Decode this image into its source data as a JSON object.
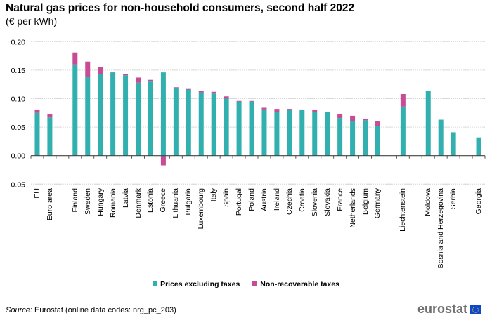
{
  "chart_data": {
    "type": "bar",
    "stacked": true,
    "title": "Natural gas prices for non-household consumers, second half 2022",
    "subtitle": "(€ per kWh)",
    "categories": [
      "EU",
      "Euro area",
      "",
      "Finland",
      "Sweden",
      "Hungary",
      "Romania",
      "Latvia",
      "Denmark",
      "Estonia",
      "Greece",
      "Lithuania",
      "Bulgaria",
      "Luxembourg",
      "Italy",
      "Spain",
      "Portugal",
      "Poland",
      "Austria",
      "Ireland",
      "Czechia",
      "Croatia",
      "Slovenia",
      "Slovakia",
      "France",
      "Netherlands",
      "Belgium",
      "Germany",
      "",
      "Liechtenstein",
      "",
      "Moldova",
      "Bosnia and Herzegovina",
      "Serbia",
      "",
      "Georgia"
    ],
    "series": [
      {
        "name": "Prices excluding taxes",
        "color": "#32afaf",
        "values": [
          0.075,
          0.067,
          null,
          0.16,
          0.138,
          0.143,
          0.146,
          0.141,
          0.128,
          0.13,
          0.146,
          0.118,
          0.116,
          0.111,
          0.109,
          0.1,
          0.095,
          0.095,
          0.081,
          0.076,
          0.08,
          0.08,
          0.077,
          0.076,
          0.066,
          0.061,
          0.062,
          0.052,
          null,
          0.086,
          null,
          0.114,
          0.063,
          0.041,
          null,
          0.032
        ]
      },
      {
        "name": "Non-recoverable taxes",
        "color": "#c84b96",
        "values": [
          0.006,
          0.006,
          null,
          0.021,
          0.027,
          0.013,
          0.001,
          0.002,
          0.009,
          0.003,
          -0.017,
          0.002,
          0.001,
          0.002,
          0.003,
          0.004,
          0.001,
          0.001,
          0.003,
          0.006,
          0.002,
          0.001,
          0.003,
          0.001,
          0.007,
          0.009,
          0.002,
          0.009,
          null,
          0.022,
          null,
          0.0,
          0.0,
          0.0,
          null,
          0.0
        ]
      }
    ],
    "yticks": [
      "0.20",
      "0.15",
      "0.10",
      "0.05",
      "0.00",
      "-0.05"
    ],
    "ylim": [
      -0.05,
      0.2
    ],
    "grid": true,
    "legend": "bottom"
  },
  "source": {
    "label": "Source:",
    "text": " Eurostat (online data codes: nrg_pc_203)"
  },
  "logo": "eurostat"
}
